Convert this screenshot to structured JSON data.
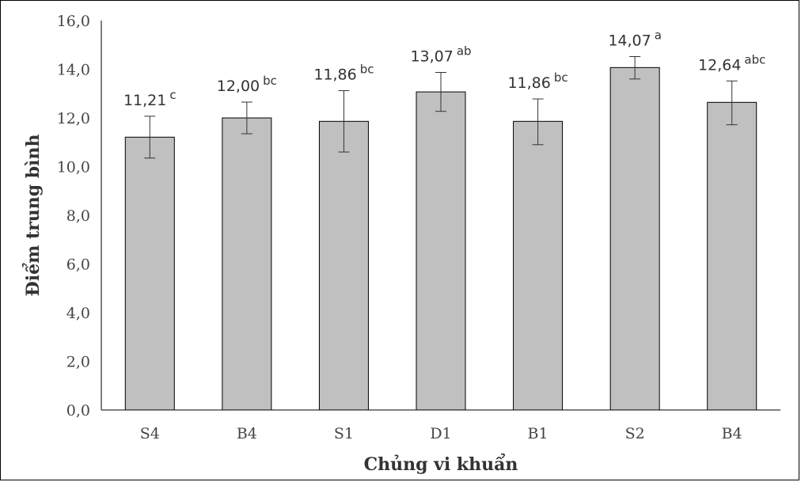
{
  "chart_data": {
    "type": "bar",
    "categories": [
      "S4",
      "B4",
      "S1",
      "D1",
      "B1",
      "S2",
      "B4"
    ],
    "values": [
      11.21,
      12.0,
      11.86,
      13.07,
      11.86,
      14.07,
      12.64
    ],
    "value_labels": [
      "11,21",
      "12,00",
      "11,86",
      "13,07",
      "11,86",
      "14,07",
      "12,64"
    ],
    "significance": [
      "c",
      "bc",
      "bc",
      "ab",
      "bc",
      "a",
      "abc"
    ],
    "error_low": [
      10.35,
      11.35,
      10.6,
      12.27,
      10.9,
      13.6,
      11.72
    ],
    "error_high": [
      12.07,
      12.65,
      13.12,
      13.87,
      12.78,
      14.52,
      13.52
    ],
    "ylim": [
      0,
      16
    ],
    "yticks": [
      "0,0",
      "2,0",
      "4,0",
      "6,0",
      "8,0",
      "10,0",
      "12,0",
      "14,0",
      "16,0"
    ],
    "xlabel": "Chủng vi khuẩn",
    "ylabel": "Điểm trung bình",
    "bar_color": "#c0c0c0",
    "bar_edge_color": "#000000",
    "axis_color": "#000000",
    "grid": false,
    "legend": "none"
  }
}
